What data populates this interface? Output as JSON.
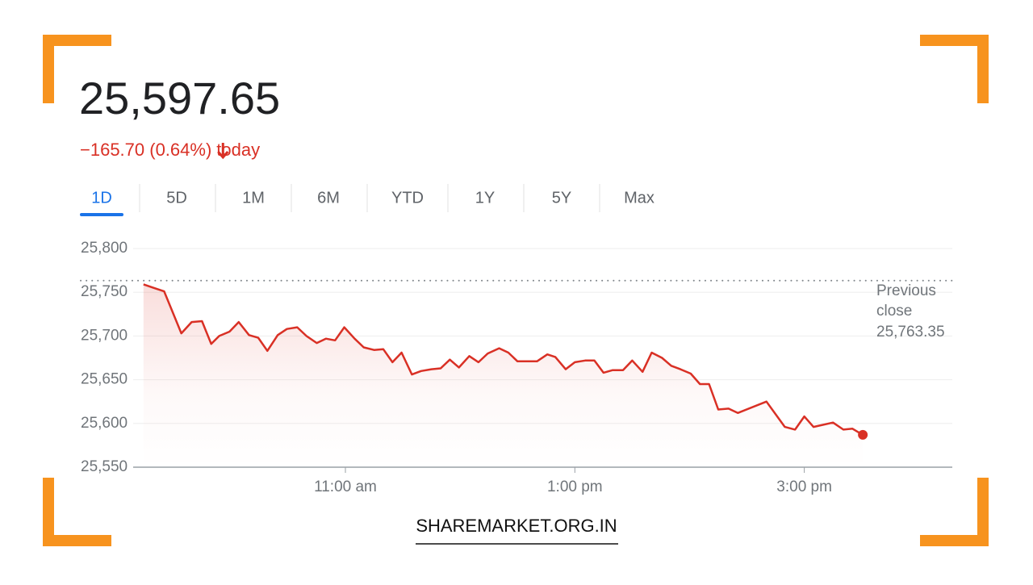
{
  "quote": {
    "price": "25,597.65",
    "change": "−165.70 (0.64%)",
    "period": "today"
  },
  "tabs": {
    "items": [
      "1D",
      "5D",
      "1M",
      "6M",
      "YTD",
      "1Y",
      "5Y",
      "Max"
    ],
    "active": 0
  },
  "chart_data": {
    "type": "line",
    "color": "#d93025",
    "x": [
      9.24,
      9.33,
      9.42,
      9.57,
      9.66,
      9.75,
      9.83,
      9.9,
      9.99,
      10.07,
      10.16,
      10.24,
      10.32,
      10.41,
      10.49,
      10.58,
      10.66,
      10.75,
      10.83,
      10.91,
      10.99,
      11.08,
      11.16,
      11.25,
      11.33,
      11.41,
      11.49,
      11.58,
      11.66,
      11.75,
      11.83,
      11.91,
      11.99,
      12.08,
      12.16,
      12.24,
      12.34,
      12.42,
      12.5,
      12.59,
      12.67,
      12.76,
      12.83,
      12.92,
      13.0,
      13.09,
      13.17,
      13.25,
      13.33,
      13.42,
      13.5,
      13.59,
      13.67,
      13.76,
      13.84,
      13.92,
      14.01,
      14.09,
      14.17,
      14.25,
      14.34,
      14.42,
      14.67,
      14.83,
      14.92,
      15.0,
      15.08,
      15.25,
      15.34,
      15.42,
      15.51
    ],
    "values": [
      25759,
      25755,
      25751,
      25703,
      25716,
      25717,
      25691,
      25700,
      25705,
      25716,
      25701,
      25698,
      25683,
      25701,
      25708,
      25710,
      25700,
      25692,
      25697,
      25695,
      25710,
      25697,
      25687,
      25684,
      25685,
      25670,
      25681,
      25656,
      25660,
      25662,
      25663,
      25673,
      25664,
      25677,
      25670,
      25680,
      25686,
      25681,
      25671,
      25671,
      25671,
      25679,
      25676,
      25662,
      25670,
      25672,
      25672,
      25658,
      25661,
      25661,
      25672,
      25659,
      25681,
      25675,
      25666,
      25662,
      25657,
      25645,
      25645,
      25616,
      25617,
      25612,
      25625,
      25596,
      25593,
      25608,
      25596,
      25601,
      25593,
      25594,
      25587
    ],
    "xlim": [
      9.15,
      16.29
    ],
    "xticks": [
      {
        "value": 11,
        "label": "11:00 am"
      },
      {
        "value": 13,
        "label": "1:00 pm"
      },
      {
        "value": 15,
        "label": "3:00 pm"
      }
    ],
    "ylim": [
      25550,
      25800
    ],
    "yticks": [
      {
        "value": 25550,
        "label": "25,550"
      },
      {
        "value": 25600,
        "label": "25,600"
      },
      {
        "value": 25650,
        "label": "25,650"
      },
      {
        "value": 25700,
        "label": "25,700"
      },
      {
        "value": 25750,
        "label": "25,750"
      },
      {
        "value": 25800,
        "label": "25,800"
      }
    ],
    "grid": true,
    "reference_line": {
      "label": "Previous close",
      "value": 25763.35,
      "value_label": "25,763.35"
    }
  },
  "footer": "SHAREMARKET.ORG.IN"
}
